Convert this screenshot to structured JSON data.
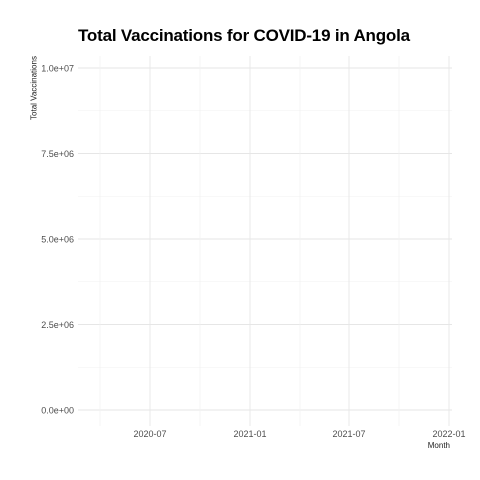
{
  "chart_data": {
    "type": "line",
    "title": "Total Vaccinations for COVID-19 in Angola",
    "xlabel": "Month",
    "ylabel": "Total Vaccinations",
    "x_ticks": [
      "2020-07",
      "2021-01",
      "2021-07",
      "2022-01"
    ],
    "y_ticks": [
      "0.0e+00",
      "2.5e+06",
      "5.0e+06",
      "7.5e+06",
      "1.0e+07"
    ],
    "y_tick_values": [
      0,
      2500000,
      5000000,
      7500000,
      10000000
    ],
    "ylim": [
      0,
      10000000
    ],
    "xlim": [
      "2020-04",
      "2022-01"
    ],
    "grid": true,
    "series": []
  }
}
